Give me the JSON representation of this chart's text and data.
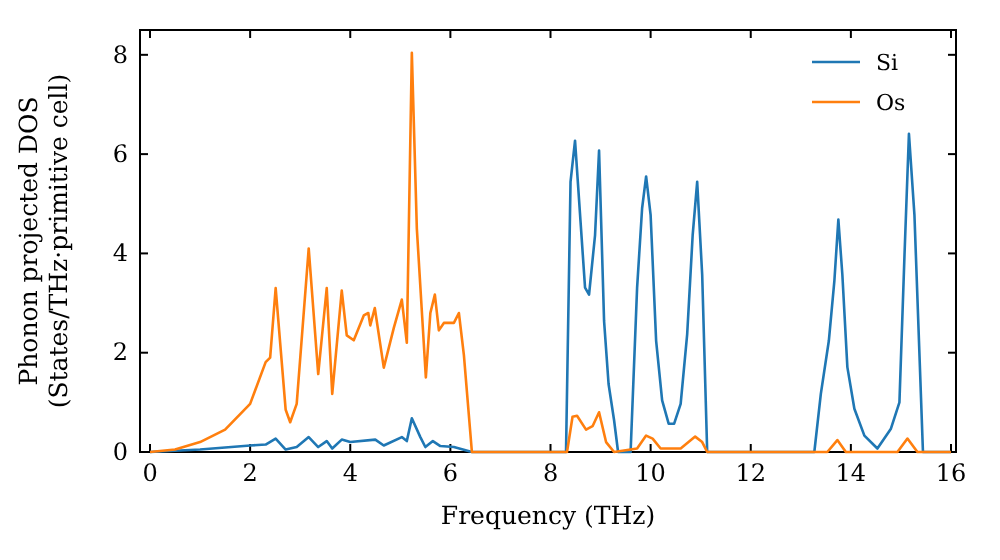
{
  "chart_data": {
    "type": "line",
    "xlabel": "Frequency (THz)",
    "ylabel": "Phonon projected DOS\n(States/THz·primitive cell)",
    "xlim": [
      -0.2,
      16.1
    ],
    "ylim": [
      0,
      8.5
    ],
    "xticks": [
      0,
      2,
      4,
      6,
      8,
      10,
      12,
      14,
      16
    ],
    "yticks": [
      0,
      2,
      4,
      6,
      8
    ],
    "legend": "top right",
    "grid": false,
    "series": [
      {
        "name": "Si",
        "color": "#1f77b4",
        "x": [
          0,
          1,
          2.0,
          2.31,
          2.51,
          2.71,
          2.93,
          3.17,
          3.36,
          3.53,
          3.64,
          3.83,
          4.0,
          4.5,
          4.67,
          5.03,
          5.13,
          5.23,
          5.4,
          5.5,
          5.65,
          5.8,
          6.07,
          6.43,
          8.31,
          8.4,
          8.49,
          8.6,
          8.69,
          8.77,
          8.89,
          8.97,
          9.07,
          9.16,
          9.27,
          9.35,
          9.6,
          9.73,
          9.83,
          9.91,
          10.0,
          10.11,
          10.23,
          10.36,
          10.47,
          10.6,
          10.73,
          10.84,
          10.93,
          11.03,
          11.13,
          13.27,
          13.4,
          13.56,
          13.67,
          13.75,
          13.83,
          13.93,
          14.07,
          14.27,
          14.53,
          14.8,
          14.97,
          15.07,
          15.16,
          15.27,
          15.44,
          16
        ],
        "values": [
          0,
          0.05,
          0.13,
          0.15,
          0.27,
          0.05,
          0.1,
          0.3,
          0.1,
          0.22,
          0.07,
          0.25,
          0.2,
          0.25,
          0.13,
          0.3,
          0.22,
          0.68,
          0.3,
          0.1,
          0.22,
          0.12,
          0.1,
          0,
          0,
          5.44,
          6.27,
          4.64,
          3.31,
          3.17,
          4.37,
          6.07,
          2.64,
          1.37,
          0.64,
          0,
          0,
          3.31,
          4.91,
          5.55,
          4.77,
          2.24,
          1.04,
          0.57,
          0.57,
          0.97,
          2.37,
          4.37,
          5.44,
          3.57,
          0,
          0,
          1.17,
          2.24,
          3.44,
          4.68,
          3.57,
          1.71,
          0.87,
          0.33,
          0.07,
          0.47,
          1.0,
          3.93,
          6.41,
          4.77,
          0,
          0
        ]
      },
      {
        "name": "Os",
        "color": "#ff7f0e",
        "x": [
          0,
          0.5,
          1,
          1.5,
          2.0,
          2.31,
          2.4,
          2.51,
          2.71,
          2.8,
          2.93,
          3.17,
          3.36,
          3.53,
          3.64,
          3.83,
          3.93,
          4.07,
          4.27,
          4.36,
          4.4,
          4.49,
          4.67,
          4.87,
          5.03,
          5.13,
          5.23,
          5.33,
          5.51,
          5.6,
          5.69,
          5.77,
          5.87,
          6.07,
          6.17,
          6.27,
          6.43,
          8.33,
          8.44,
          8.53,
          8.71,
          8.84,
          8.97,
          9.11,
          9.27,
          9.73,
          9.91,
          10.04,
          10.2,
          10.6,
          10.89,
          11.03,
          11.13,
          13.53,
          13.73,
          13.9,
          14.93,
          15.13,
          15.33,
          16
        ],
        "values": [
          0,
          0.05,
          0.2,
          0.45,
          0.97,
          1.81,
          1.9,
          3.3,
          0.85,
          0.6,
          0.97,
          4.1,
          1.57,
          3.3,
          1.17,
          3.25,
          2.35,
          2.25,
          2.75,
          2.8,
          2.55,
          2.9,
          1.7,
          2.5,
          3.07,
          2.2,
          8.04,
          4.5,
          1.5,
          2.8,
          3.17,
          2.45,
          2.6,
          2.6,
          2.8,
          1.95,
          0,
          0,
          0.71,
          0.73,
          0.45,
          0.52,
          0.8,
          0.2,
          0,
          0.07,
          0.33,
          0.27,
          0.07,
          0.07,
          0.31,
          0.2,
          0,
          0,
          0.24,
          0,
          0,
          0.27,
          0,
          0
        ]
      }
    ]
  }
}
